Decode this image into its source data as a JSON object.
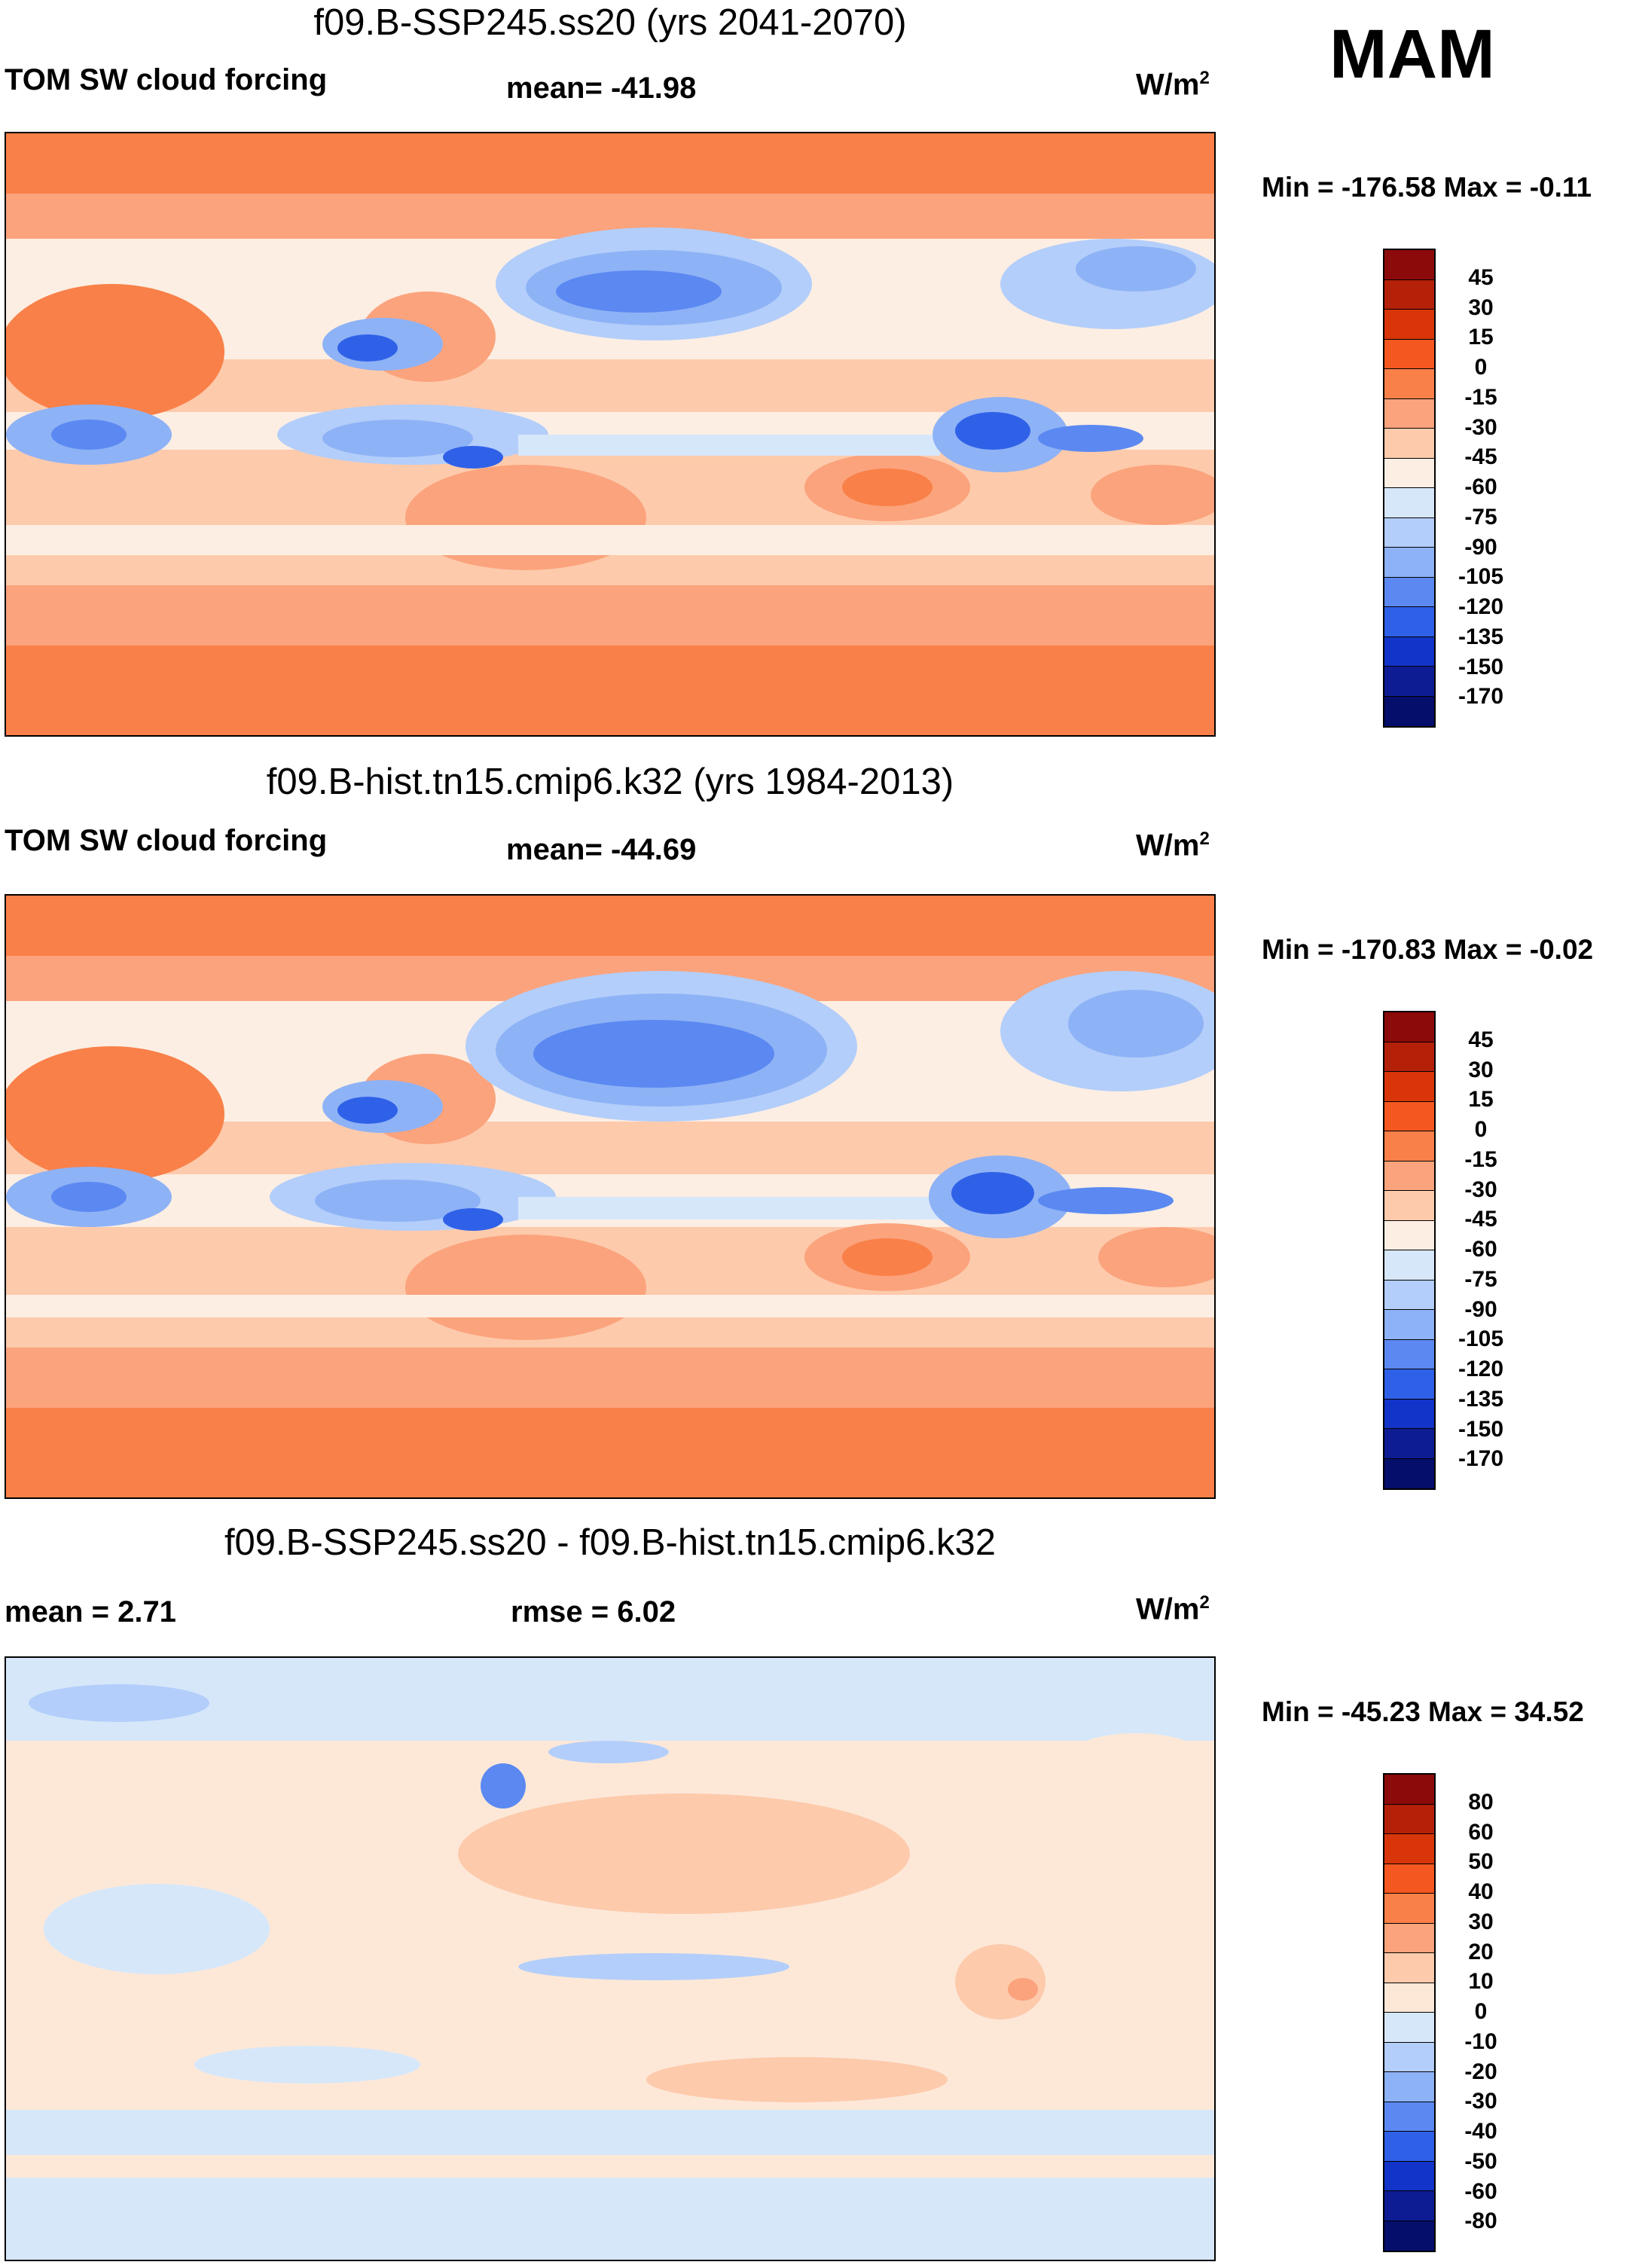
{
  "season": "MAM",
  "panels": [
    {
      "title": "f09.B-SSP245.ss20 (yrs 2041-2070)",
      "left": "TOM SW cloud forcing",
      "center": "mean= -41.98",
      "units": "W/m",
      "units_sup": "2",
      "minmax": "Min = -176.58 Max =  -0.11",
      "cbar_labels": [
        "45",
        "30",
        "15",
        "0",
        "-15",
        "-30",
        "-45",
        "-60",
        "-75",
        "-90",
        "-105",
        "-120",
        "-135",
        "-150",
        "-170"
      ]
    },
    {
      "title": "f09.B-hist.tn15.cmip6.k32 (yrs 1984-2013)",
      "left": "TOM SW cloud forcing",
      "center": "mean= -44.69",
      "units": "W/m",
      "units_sup": "2",
      "minmax": "Min = -170.83 Max =  -0.02",
      "cbar_labels": [
        "45",
        "30",
        "15",
        "0",
        "-15",
        "-30",
        "-45",
        "-60",
        "-75",
        "-90",
        "-105",
        "-120",
        "-135",
        "-150",
        "-170"
      ]
    },
    {
      "title": "f09.B-SSP245.ss20 - f09.B-hist.tn15.cmip6.k32",
      "left": "mean =   2.71",
      "center": "rmse =   6.02",
      "units": "W/m",
      "units_sup": "2",
      "minmax": "Min = -45.23 Max =  34.52",
      "cbar_labels": [
        "80",
        "60",
        "50",
        "40",
        "30",
        "20",
        "10",
        "0",
        "-10",
        "-20",
        "-30",
        "-40",
        "-50",
        "-60",
        "-80"
      ]
    }
  ],
  "colors": {
    "cbar_abs": [
      "#8c0a0a",
      "#b52008",
      "#d8360a",
      "#f4571f",
      "#f98048",
      "#fba37c",
      "#fdcaac",
      "#fdeee3",
      "#d6e7fa",
      "#b3cefa",
      "#8eb2f6",
      "#5b89f1",
      "#2f61e8",
      "#1234c8",
      "#0d1c93",
      "#050e6a"
    ],
    "cbar_diff": [
      "#8c0a0a",
      "#b52008",
      "#d8360a",
      "#f4571f",
      "#f98048",
      "#fba37c",
      "#fdcaac",
      "#fde8d8",
      "#d6e7fa",
      "#b3cefa",
      "#8eb2f6",
      "#5b89f1",
      "#2f61e8",
      "#1234c8",
      "#0d1c93",
      "#050e6a"
    ]
  }
}
